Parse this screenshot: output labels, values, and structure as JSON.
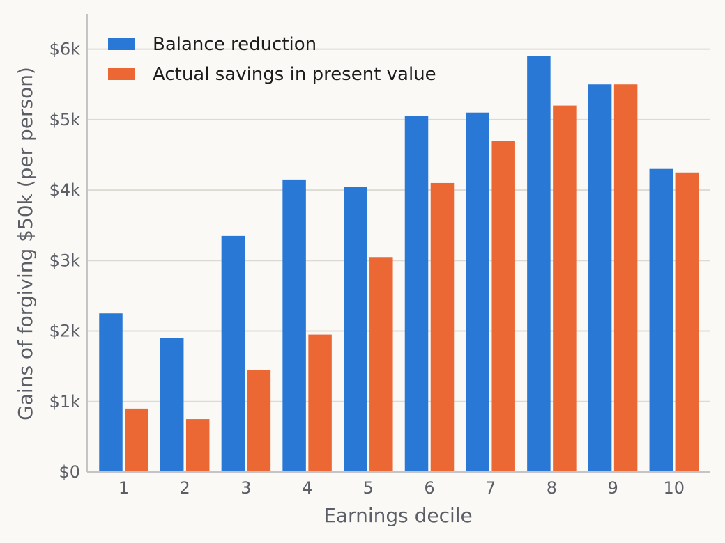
{
  "chart_data": {
    "type": "bar",
    "title": "",
    "xlabel": "Earnings decile",
    "ylabel": "Gains of forgiving $50k (per person)",
    "categories": [
      "1",
      "2",
      "3",
      "4",
      "5",
      "6",
      "7",
      "8",
      "9",
      "10"
    ],
    "series": [
      {
        "name": "Balance reduction",
        "color": "#2a78d6",
        "values": [
          2250,
          1900,
          3350,
          4150,
          4050,
          5050,
          5100,
          5900,
          5500,
          4300
        ]
      },
      {
        "name": "Actual savings in present value",
        "color": "#eb6834",
        "values": [
          900,
          750,
          1450,
          1950,
          3050,
          4100,
          4700,
          5200,
          5500,
          4250
        ]
      }
    ],
    "ylim": [
      0,
      6500
    ],
    "yticks": [
      0,
      1000,
      2000,
      3000,
      4000,
      5000,
      6000
    ],
    "ytick_labels": [
      "$0",
      "$1k",
      "$2k",
      "$3k",
      "$4k",
      "$5k",
      "$6k"
    ],
    "grid": true,
    "legend_position": "top-left"
  }
}
